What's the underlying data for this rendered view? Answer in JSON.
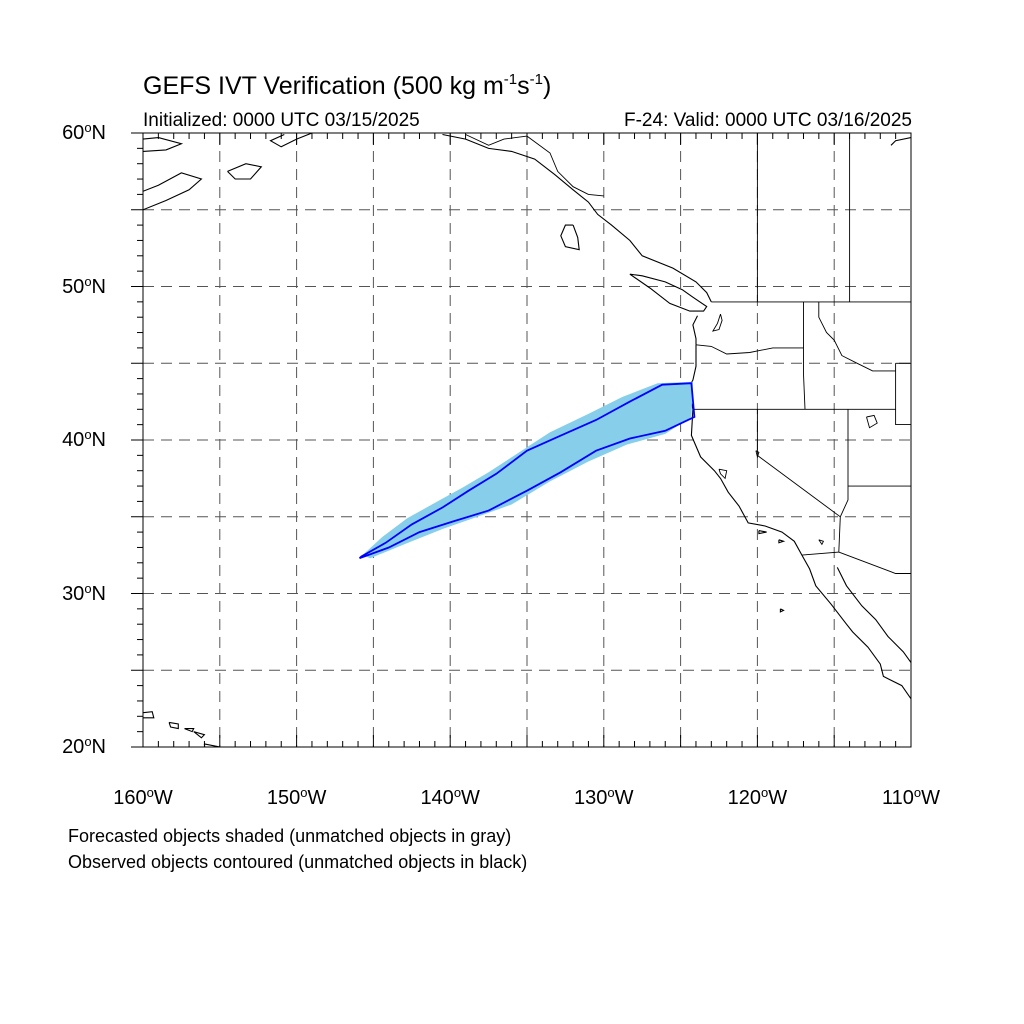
{
  "header": {
    "title_main": "GEFS IVT Verification (500 kg m",
    "title_exp1": "-1",
    "title_mid": "s",
    "title_exp2": "-1",
    "title_close": ")",
    "initialized": "Initialized: 0000 UTC 03/15/2025",
    "valid": "F-24: Valid: 0000 UTC 03/16/2025"
  },
  "axes": {
    "lon_range": [
      -160,
      -110
    ],
    "lat_range": [
      20,
      60
    ],
    "grid_style": "dashed",
    "lat_labels": [
      {
        "value": 60,
        "num": "60",
        "hemi": "N"
      },
      {
        "value": 50,
        "num": "50",
        "hemi": "N"
      },
      {
        "value": 40,
        "num": "40",
        "hemi": "N"
      },
      {
        "value": 30,
        "num": "30",
        "hemi": "N"
      },
      {
        "value": 20,
        "num": "20",
        "hemi": "N"
      }
    ],
    "lon_labels": [
      {
        "value": -160,
        "num": "160",
        "hemi": "W"
      },
      {
        "value": -150,
        "num": "150",
        "hemi": "W"
      },
      {
        "value": -140,
        "num": "140",
        "hemi": "W"
      },
      {
        "value": -130,
        "num": "130",
        "hemi": "W"
      },
      {
        "value": -120,
        "num": "120",
        "hemi": "W"
      },
      {
        "value": -110,
        "num": "110",
        "hemi": "W"
      }
    ],
    "degree_symbol": "o"
  },
  "objects": {
    "forecast_fill_color": "#87ceeb",
    "observed_contour_color": "#0000ff",
    "matched": true,
    "forecast_object": [
      [
        -145.7,
        32.5
      ],
      [
        -144.4,
        33.7
      ],
      [
        -142.8,
        34.9
      ],
      [
        -141.0,
        35.9
      ],
      [
        -139.2,
        36.9
      ],
      [
        -137.5,
        37.9
      ],
      [
        -135.5,
        39.2
      ],
      [
        -133.5,
        40.5
      ],
      [
        -131.0,
        41.7
      ],
      [
        -128.8,
        42.8
      ],
      [
        -126.5,
        43.7
      ],
      [
        -124.2,
        43.8
      ],
      [
        -124.3,
        41.5
      ],
      [
        -126.0,
        40.4
      ],
      [
        -128.5,
        39.7
      ],
      [
        -131.0,
        38.6
      ],
      [
        -133.5,
        37.3
      ],
      [
        -136.0,
        35.8
      ],
      [
        -138.5,
        34.9
      ],
      [
        -140.5,
        34.2
      ],
      [
        -143.0,
        33.2
      ],
      [
        -145.2,
        32.3
      ]
    ],
    "observed_object": [
      [
        -145.8,
        32.4
      ],
      [
        -144.2,
        33.3
      ],
      [
        -142.5,
        34.5
      ],
      [
        -140.5,
        35.6
      ],
      [
        -138.8,
        36.7
      ],
      [
        -137.0,
        37.8
      ],
      [
        -135.0,
        39.3
      ],
      [
        -133.0,
        40.2
      ],
      [
        -130.5,
        41.3
      ],
      [
        -128.3,
        42.5
      ],
      [
        -126.2,
        43.6
      ],
      [
        -124.3,
        43.7
      ],
      [
        -124.1,
        41.5
      ],
      [
        -126.0,
        40.6
      ],
      [
        -128.3,
        40.1
      ],
      [
        -130.5,
        39.3
      ],
      [
        -132.8,
        37.9
      ],
      [
        -135.0,
        36.7
      ],
      [
        -137.5,
        35.4
      ],
      [
        -139.8,
        34.7
      ],
      [
        -142.0,
        34.0
      ],
      [
        -144.0,
        33.0
      ],
      [
        -145.9,
        32.3
      ]
    ]
  },
  "geography": {
    "coastlines": [
      [
        [
          -124.5,
          43.4
        ],
        [
          -124.2,
          42.0
        ],
        [
          -124.3,
          40.3
        ],
        [
          -123.7,
          38.9
        ],
        [
          -122.8,
          38.0
        ],
        [
          -122.4,
          37.5
        ],
        [
          -121.9,
          36.6
        ],
        [
          -121.2,
          35.7
        ],
        [
          -120.6,
          34.6
        ],
        [
          -119.5,
          34.4
        ],
        [
          -118.4,
          34.0
        ],
        [
          -117.6,
          33.4
        ],
        [
          -117.1,
          32.5
        ],
        [
          -116.6,
          31.6
        ],
        [
          -116.2,
          30.5
        ],
        [
          -115.2,
          29.3
        ],
        [
          -114.2,
          28.0
        ],
        [
          -113.8,
          27.5
        ],
        [
          -112.8,
          26.5
        ],
        [
          -112.0,
          25.4
        ],
        [
          -111.8,
          24.6
        ],
        [
          -110.6,
          24.0
        ],
        [
          -109.9,
          23.0
        ]
      ],
      [
        [
          -114.8,
          31.7
        ],
        [
          -114.2,
          30.5
        ],
        [
          -113.2,
          29.2
        ],
        [
          -112.3,
          28.3
        ],
        [
          -111.5,
          27.2
        ],
        [
          -110.5,
          26.2
        ],
        [
          -110.0,
          25.5
        ]
      ],
      [
        [
          -124.0,
          46.2
        ],
        [
          -124.0,
          44.8
        ],
        [
          -124.2,
          43.9
        ],
        [
          -124.5,
          43.4
        ]
      ],
      [
        [
          -123.9,
          48.1
        ],
        [
          -124.2,
          47.5
        ],
        [
          -124.0,
          46.6
        ],
        [
          -124.0,
          46.2
        ]
      ],
      [
        [
          -124.9,
          49.8
        ],
        [
          -126.0,
          50.3
        ],
        [
          -127.5,
          50.7
        ],
        [
          -128.3,
          50.8
        ],
        [
          -127.0,
          49.9
        ],
        [
          -125.7,
          48.9
        ],
        [
          -124.4,
          48.4
        ],
        [
          -123.5,
          48.4
        ],
        [
          -123.3,
          48.7
        ],
        [
          -124.2,
          49.3
        ],
        [
          -124.9,
          49.8
        ]
      ],
      [
        [
          -123.0,
          49.0
        ],
        [
          -123.3,
          49.6
        ],
        [
          -124.0,
          50.3
        ],
        [
          -125.5,
          51.2
        ],
        [
          -127.5,
          52.0
        ],
        [
          -128.3,
          53.0
        ],
        [
          -129.5,
          54.0
        ],
        [
          -130.4,
          54.7
        ],
        [
          -131.0,
          55.5
        ],
        [
          -132.0,
          56.3
        ],
        [
          -133.2,
          57.3
        ],
        [
          -134.5,
          58.3
        ],
        [
          -136.0,
          58.8
        ],
        [
          -137.5,
          59.0
        ],
        [
          -139.0,
          59.6
        ],
        [
          -140.5,
          59.9
        ]
      ],
      [
        [
          -132.0,
          54.0
        ],
        [
          -131.7,
          53.2
        ],
        [
          -131.6,
          52.4
        ],
        [
          -132.5,
          52.6
        ],
        [
          -132.8,
          53.3
        ],
        [
          -132.5,
          54.0
        ],
        [
          -132.0,
          54.0
        ]
      ],
      [
        [
          -160.0,
          55.0
        ],
        [
          -158.5,
          55.6
        ],
        [
          -157.0,
          56.3
        ],
        [
          -156.2,
          57.0
        ],
        [
          -157.5,
          57.4
        ],
        [
          -159.0,
          56.6
        ],
        [
          -160.0,
          56.2
        ]
      ],
      [
        [
          -160.0,
          58.8
        ],
        [
          -158.5,
          58.9
        ],
        [
          -157.5,
          59.3
        ],
        [
          -159.0,
          59.7
        ],
        [
          -160.0,
          59.6
        ]
      ],
      [
        [
          -154.5,
          57.5
        ],
        [
          -153.3,
          58.0
        ],
        [
          -152.3,
          57.8
        ],
        [
          -153.0,
          57.0
        ],
        [
          -154.0,
          57.0
        ],
        [
          -154.5,
          57.5
        ]
      ],
      [
        [
          -150.8,
          59.9
        ],
        [
          -151.7,
          59.5
        ],
        [
          -151.0,
          59.1
        ],
        [
          -150.0,
          59.6
        ],
        [
          -149.0,
          60.0
        ]
      ],
      [
        [
          -110.0,
          59.7
        ],
        [
          -111.0,
          59.5
        ],
        [
          -111.3,
          59.2
        ]
      ]
    ],
    "islands": [
      [
        [
          -160.3,
          22.2
        ],
        [
          -159.4,
          22.3
        ],
        [
          -159.3,
          21.9
        ],
        [
          -160.0,
          21.9
        ],
        [
          -160.3,
          22.2
        ]
      ],
      [
        [
          -158.3,
          21.6
        ],
        [
          -157.7,
          21.5
        ],
        [
          -157.7,
          21.2
        ],
        [
          -158.2,
          21.3
        ],
        [
          -158.3,
          21.6
        ]
      ],
      [
        [
          -157.3,
          21.2
        ],
        [
          -156.7,
          21.2
        ],
        [
          -156.8,
          21.0
        ],
        [
          -157.3,
          21.2
        ]
      ],
      [
        [
          -156.7,
          21.0
        ],
        [
          -156.0,
          20.8
        ],
        [
          -156.2,
          20.6
        ],
        [
          -156.7,
          21.0
        ]
      ],
      [
        [
          -156.0,
          20.2
        ],
        [
          -155.0,
          20.0
        ],
        [
          -154.9,
          19.5
        ],
        [
          -155.9,
          19.0
        ],
        [
          -156.0,
          20.2
        ]
      ],
      [
        [
          -118.6,
          33.5
        ],
        [
          -118.3,
          33.4
        ],
        [
          -118.6,
          33.3
        ],
        [
          -118.6,
          33.5
        ]
      ],
      [
        [
          -119.9,
          34.1
        ],
        [
          -119.4,
          34.0
        ],
        [
          -119.9,
          33.9
        ],
        [
          -119.9,
          34.1
        ]
      ],
      [
        [
          -118.5,
          29.0
        ],
        [
          -118.3,
          28.9
        ],
        [
          -118.5,
          28.8
        ],
        [
          -118.5,
          29.0
        ]
      ]
    ],
    "borders": [
      [
        [
          -123.0,
          49.0
        ],
        [
          -110.0,
          49.0
        ]
      ],
      [
        [
          -124.2,
          42.0
        ],
        [
          -111.0,
          42.0
        ]
      ],
      [
        [
          -124.0,
          46.2
        ],
        [
          -123.0,
          46.1
        ],
        [
          -122.0,
          45.6
        ],
        [
          -120.5,
          45.7
        ],
        [
          -119.0,
          46.0
        ],
        [
          -117.0,
          46.0
        ]
      ],
      [
        [
          -117.0,
          49.0
        ],
        [
          -117.0,
          44.3
        ]
      ],
      [
        [
          -117.0,
          44.3
        ],
        [
          -116.9,
          42.0
        ]
      ],
      [
        [
          -120.0,
          42.0
        ],
        [
          -120.0,
          39.0
        ],
        [
          -114.6,
          35.0
        ]
      ],
      [
        [
          -114.1,
          42.0
        ],
        [
          -114.1,
          36.1
        ],
        [
          -114.6,
          35.0
        ]
      ],
      [
        [
          -114.6,
          35.0
        ],
        [
          -114.7,
          32.7
        ],
        [
          -117.1,
          32.5
        ]
      ],
      [
        [
          -114.7,
          32.7
        ],
        [
          -111.0,
          31.3
        ],
        [
          -110.0,
          31.3
        ]
      ],
      [
        [
          -114.1,
          37.0
        ],
        [
          -110.0,
          37.0
        ]
      ],
      [
        [
          -111.0,
          45.0
        ],
        [
          -110.0,
          45.0
        ]
      ],
      [
        [
          -111.0,
          45.0
        ],
        [
          -111.0,
          41.0
        ],
        [
          -110.0,
          41.0
        ]
      ],
      [
        [
          -116.0,
          49.0
        ],
        [
          -116.0,
          48.0
        ],
        [
          -115.5,
          47.0
        ],
        [
          -115.0,
          46.5
        ],
        [
          -114.5,
          45.5
        ],
        [
          -113.5,
          45.0
        ],
        [
          -112.5,
          44.5
        ],
        [
          -111.0,
          44.5
        ]
      ],
      [
        [
          -139.0,
          59.9
        ],
        [
          -137.5,
          59.2
        ],
        [
          -136.5,
          59.6
        ],
        [
          -135.0,
          59.8
        ],
        [
          -133.5,
          58.7
        ],
        [
          -133.0,
          57.5
        ],
        [
          -132.0,
          56.5
        ],
        [
          -131.0,
          56.0
        ],
        [
          -130.0,
          55.9
        ]
      ],
      [
        [
          -120.0,
          60.0
        ],
        [
          -120.0,
          49.0
        ]
      ],
      [
        [
          -114.0,
          60.0
        ],
        [
          -114.0,
          49.0
        ]
      ]
    ],
    "lakes": [
      [
        [
          -112.9,
          41.5
        ],
        [
          -112.4,
          41.6
        ],
        [
          -112.2,
          41.1
        ],
        [
          -112.7,
          40.8
        ],
        [
          -112.9,
          41.5
        ]
      ],
      [
        [
          -120.1,
          39.3
        ],
        [
          -119.9,
          39.2
        ],
        [
          -120.0,
          38.9
        ],
        [
          -120.1,
          39.3
        ]
      ],
      [
        [
          -116.0,
          33.5
        ],
        [
          -115.7,
          33.4
        ],
        [
          -115.8,
          33.2
        ],
        [
          -116.0,
          33.5
        ]
      ]
    ],
    "inland_water": [
      [
        [
          -122.4,
          48.2
        ],
        [
          -122.6,
          47.6
        ],
        [
          -122.9,
          47.1
        ],
        [
          -122.5,
          47.2
        ],
        [
          -122.3,
          47.8
        ],
        [
          -122.4,
          48.2
        ]
      ],
      [
        [
          -122.5,
          38.1
        ],
        [
          -122.0,
          38.0
        ],
        [
          -122.1,
          37.5
        ],
        [
          -122.4,
          37.8
        ],
        [
          -122.5,
          38.1
        ]
      ]
    ]
  },
  "footer": {
    "line1": "Forecasted objects shaded (unmatched objects in gray)",
    "line2": "Observed objects contoured (unmatched objects in black)"
  }
}
